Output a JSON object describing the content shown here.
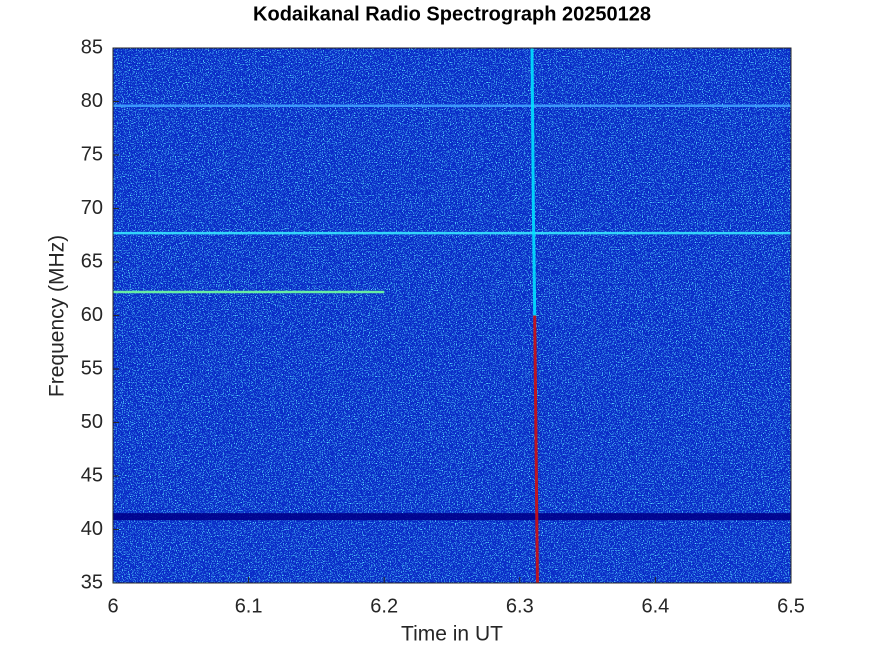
{
  "chart_data": {
    "type": "spectrogram",
    "title": "Kodaikanal Radio Spectrograph  20250128",
    "x_label": "Time in UT",
    "y_label": "Frequency (MHz)",
    "xlim": [
      6,
      6.5
    ],
    "xticks": [
      6,
      6.1,
      6.2,
      6.3,
      6.4,
      6.5
    ],
    "ylim": [
      35,
      85
    ],
    "yticks": [
      35,
      40,
      45,
      50,
      55,
      60,
      65,
      70,
      75,
      80,
      85
    ],
    "background": "#0a2cc8",
    "series": [
      {
        "color": "#00008b",
        "x": [
          6,
          6.5
        ],
        "values": [
          41.2,
          41.2
        ]
      },
      {
        "color": "#3fa0ff",
        "x": [
          6,
          6.5
        ],
        "values": [
          79.6,
          79.6
        ]
      },
      {
        "color": "#36e6ff",
        "x": [
          6,
          6.5
        ],
        "values": [
          67.7,
          67.7
        ]
      },
      {
        "color": "#6fffa0",
        "x": [
          6,
          6.09,
          6.12,
          6.2
        ],
        "values": [
          62.2,
          62.2,
          62.2,
          62.2
        ]
      },
      {
        "color": "#00e0ff",
        "x": [
          6.309,
          6.31,
          6.311
        ],
        "values": [
          85,
          70,
          60
        ]
      },
      {
        "color": "#cc1010",
        "x": [
          6.311,
          6.313
        ],
        "values": [
          60,
          35
        ]
      }
    ]
  }
}
